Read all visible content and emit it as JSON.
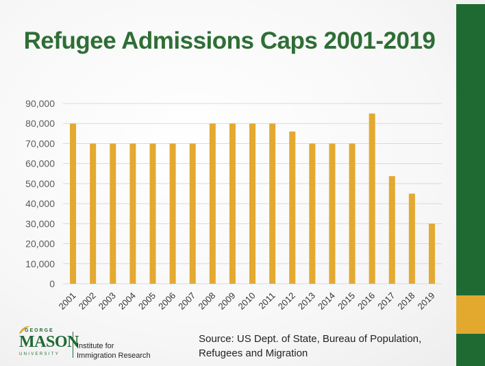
{
  "title": "Refugee Admissions Caps 2001-2019",
  "colors": {
    "title": "#2e6e35",
    "bar": "#e3a930",
    "sidebar": "#1f6a33",
    "sidebar_accent": "#e3a92f",
    "grid": "#d9d9d9",
    "axis_text": "#595959"
  },
  "source": {
    "line1": "Source: US Dept. of State, Bureau of Population,",
    "line2": "Refugees and Migration"
  },
  "logo": {
    "george": "GEORGE",
    "mason": "MASON",
    "university": "UNIVERSITY",
    "institute": "Institute for\nImmigration Research"
  },
  "chart_data": {
    "type": "bar",
    "title": "Refugee Admissions Caps 2001-2019",
    "categories": [
      "2001",
      "2002",
      "2003",
      "2004",
      "2005",
      "2006",
      "2007",
      "2008",
      "2009",
      "2010",
      "2011",
      "2012",
      "2013",
      "2014",
      "2015",
      "2016",
      "2017",
      "2018",
      "2019"
    ],
    "values": [
      80000,
      70000,
      70000,
      70000,
      70000,
      70000,
      70000,
      80000,
      80000,
      80000,
      80000,
      76000,
      70000,
      70000,
      70000,
      85000,
      53716,
      45000,
      30000
    ],
    "ylim": [
      0,
      90000
    ],
    "yticks": [
      0,
      10000,
      20000,
      30000,
      40000,
      50000,
      60000,
      70000,
      80000,
      90000
    ],
    "ytick_labels": [
      "0",
      "10,000",
      "20,000",
      "30,000",
      "40,000",
      "50,000",
      "60,000",
      "70,000",
      "80,000",
      "90,000"
    ],
    "grid": true,
    "legend": "none"
  }
}
